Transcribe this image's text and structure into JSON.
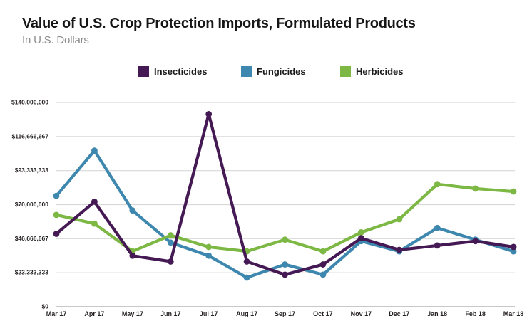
{
  "header": {
    "title": "Value of U.S. Crop Protection Imports, Formulated Products",
    "subtitle": "In U.S. Dollars"
  },
  "legend": [
    {
      "label": "Insecticides",
      "color": "#451a54"
    },
    {
      "label": "Fungicides",
      "color": "#3e87ae"
    },
    {
      "label": "Herbicides",
      "color": "#7cb843"
    }
  ],
  "chart_data": {
    "type": "line",
    "title": "Value of U.S. Crop Protection Imports, Formulated Products",
    "subtitle": "In U.S. Dollars",
    "x": [
      "Mar 17",
      "Apr 17",
      "May 17",
      "Jun 17",
      "Jul 17",
      "Aug 17",
      "Sep 17",
      "Oct 17",
      "Nov 17",
      "Dec 17",
      "Jan 18",
      "Feb 18",
      "Mar 18"
    ],
    "series": [
      {
        "name": "Insecticides",
        "color": "#451a54",
        "values": [
          50000000,
          72000000,
          35000000,
          31000000,
          132000000,
          31000000,
          22000000,
          29000000,
          47000000,
          39000000,
          42000000,
          45000000,
          41000000
        ]
      },
      {
        "name": "Fungicides",
        "color": "#3e87ae",
        "values": [
          76000000,
          107000000,
          66000000,
          44000000,
          35000000,
          20000000,
          29000000,
          22000000,
          45000000,
          38000000,
          54000000,
          46000000,
          38000000
        ]
      },
      {
        "name": "Herbicides",
        "color": "#7cb843",
        "values": [
          63000000,
          57000000,
          38000000,
          49000000,
          41000000,
          38000000,
          46000000,
          38000000,
          51000000,
          60000000,
          84000000,
          81000000,
          79000000
        ]
      }
    ],
    "y_ticks": [
      "$0",
      "$23,333,333",
      "$46,666,667",
      "$70,000,000",
      "$93,333,333",
      "$116,666,667",
      "$140,000,000"
    ],
    "ylim": [
      0,
      140000000
    ],
    "grid": true,
    "legend_position": "top",
    "grid_color": "#d8d8d8",
    "baseline_color": "#a8a8a8",
    "tick_label_color": "#231f20"
  }
}
